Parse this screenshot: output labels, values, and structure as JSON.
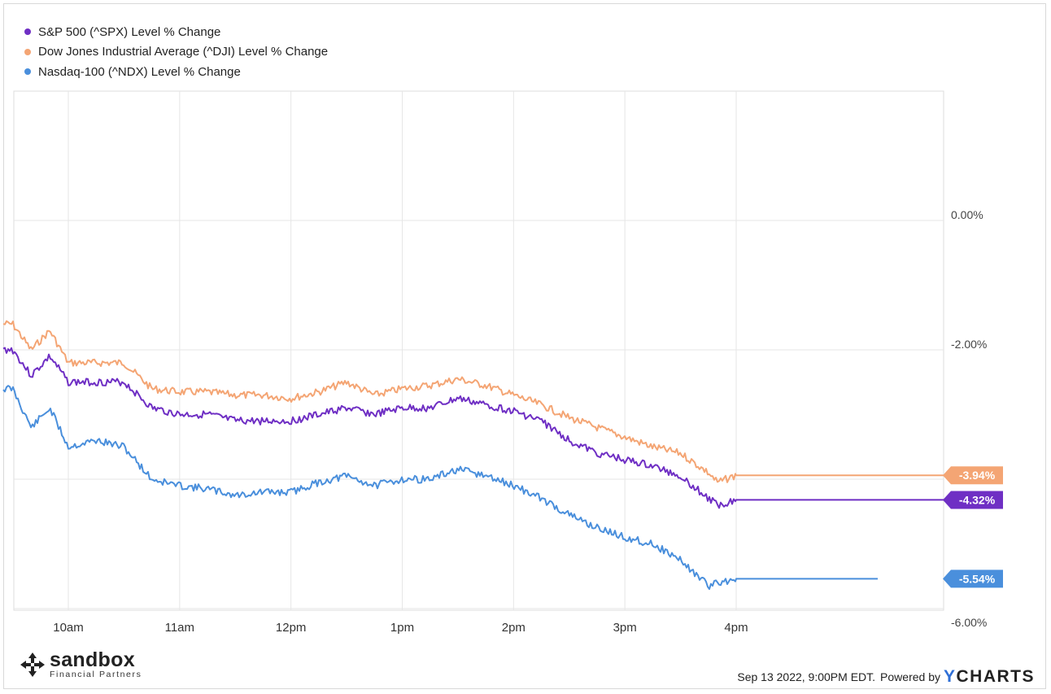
{
  "chart_data": {
    "type": "line",
    "x_ticks": [
      "10am",
      "11am",
      "12pm",
      "1pm",
      "2pm",
      "3pm",
      "4pm"
    ],
    "y_ticks": [
      "0.00%",
      "-2.00%",
      "-6.00%"
    ],
    "ylim": [
      -6.2,
      2.0
    ],
    "grid": true,
    "legend_position": "top-left",
    "series": [
      {
        "name": "S&P 500 (^SPX) Level % Change",
        "color": "#6f2fc4",
        "end_label": "-4.32%",
        "x": [
          "9:30",
          "9:40",
          "9:50",
          "10:00",
          "10:15",
          "10:30",
          "10:45",
          "11:00",
          "11:15",
          "11:30",
          "11:45",
          "12:00",
          "12:15",
          "12:30",
          "12:45",
          "13:00",
          "13:15",
          "13:30",
          "13:45",
          "14:00",
          "14:15",
          "14:30",
          "14:45",
          "15:00",
          "15:15",
          "15:30",
          "15:45",
          "15:50",
          "16:00"
        ],
        "values": [
          -2.0,
          -2.4,
          -2.1,
          -2.5,
          -2.5,
          -2.5,
          -2.9,
          -3.0,
          -3.0,
          -3.1,
          -3.1,
          -3.1,
          -3.0,
          -2.9,
          -3.0,
          -2.9,
          -2.9,
          -2.75,
          -2.85,
          -2.95,
          -3.1,
          -3.4,
          -3.6,
          -3.7,
          -3.8,
          -3.95,
          -4.3,
          -4.4,
          -4.32
        ]
      },
      {
        "name": "Dow Jones Industrial Average (^DJI) Level % Change",
        "color": "#f4a574",
        "end_label": "-3.94%",
        "x": [
          "9:30",
          "9:40",
          "9:50",
          "10:00",
          "10:15",
          "10:30",
          "10:45",
          "11:00",
          "11:15",
          "11:30",
          "11:45",
          "12:00",
          "12:15",
          "12:30",
          "12:45",
          "13:00",
          "13:15",
          "13:30",
          "13:45",
          "14:00",
          "14:15",
          "14:30",
          "14:45",
          "15:00",
          "15:15",
          "15:30",
          "15:45",
          "15:50",
          "16:00"
        ],
        "values": [
          -1.6,
          -2.0,
          -1.7,
          -2.2,
          -2.2,
          -2.2,
          -2.6,
          -2.65,
          -2.65,
          -2.7,
          -2.7,
          -2.75,
          -2.65,
          -2.5,
          -2.7,
          -2.6,
          -2.55,
          -2.45,
          -2.55,
          -2.7,
          -2.85,
          -3.05,
          -3.2,
          -3.35,
          -3.5,
          -3.6,
          -3.9,
          -4.05,
          -3.94
        ]
      },
      {
        "name": "Nasdaq-100 (^NDX) Level % Change",
        "color": "#4a8fdc",
        "end_label": "-5.54%",
        "x": [
          "9:30",
          "9:40",
          "9:50",
          "10:00",
          "10:15",
          "10:30",
          "10:45",
          "11:00",
          "11:15",
          "11:30",
          "11:45",
          "12:00",
          "12:15",
          "12:30",
          "12:45",
          "13:00",
          "13:15",
          "13:30",
          "13:45",
          "14:00",
          "14:15",
          "14:30",
          "14:45",
          "15:00",
          "15:15",
          "15:30",
          "15:45",
          "15:50",
          "16:00"
        ],
        "values": [
          -2.6,
          -3.2,
          -2.9,
          -3.5,
          -3.4,
          -3.5,
          -4.0,
          -4.1,
          -4.15,
          -4.25,
          -4.2,
          -4.2,
          -4.05,
          -3.95,
          -4.1,
          -4.0,
          -4.0,
          -3.85,
          -3.95,
          -4.1,
          -4.3,
          -4.55,
          -4.75,
          -4.9,
          -5.0,
          -5.25,
          -5.65,
          -5.6,
          -5.54
        ]
      }
    ]
  },
  "footer": {
    "logo_name": "sandbox",
    "logo_sub": "Financial Partners",
    "timestamp": "Sep 13 2022, 9:00PM EDT.",
    "powered_by": "Powered by",
    "brand_y": "Y",
    "brand_rest": "CHARTS"
  }
}
